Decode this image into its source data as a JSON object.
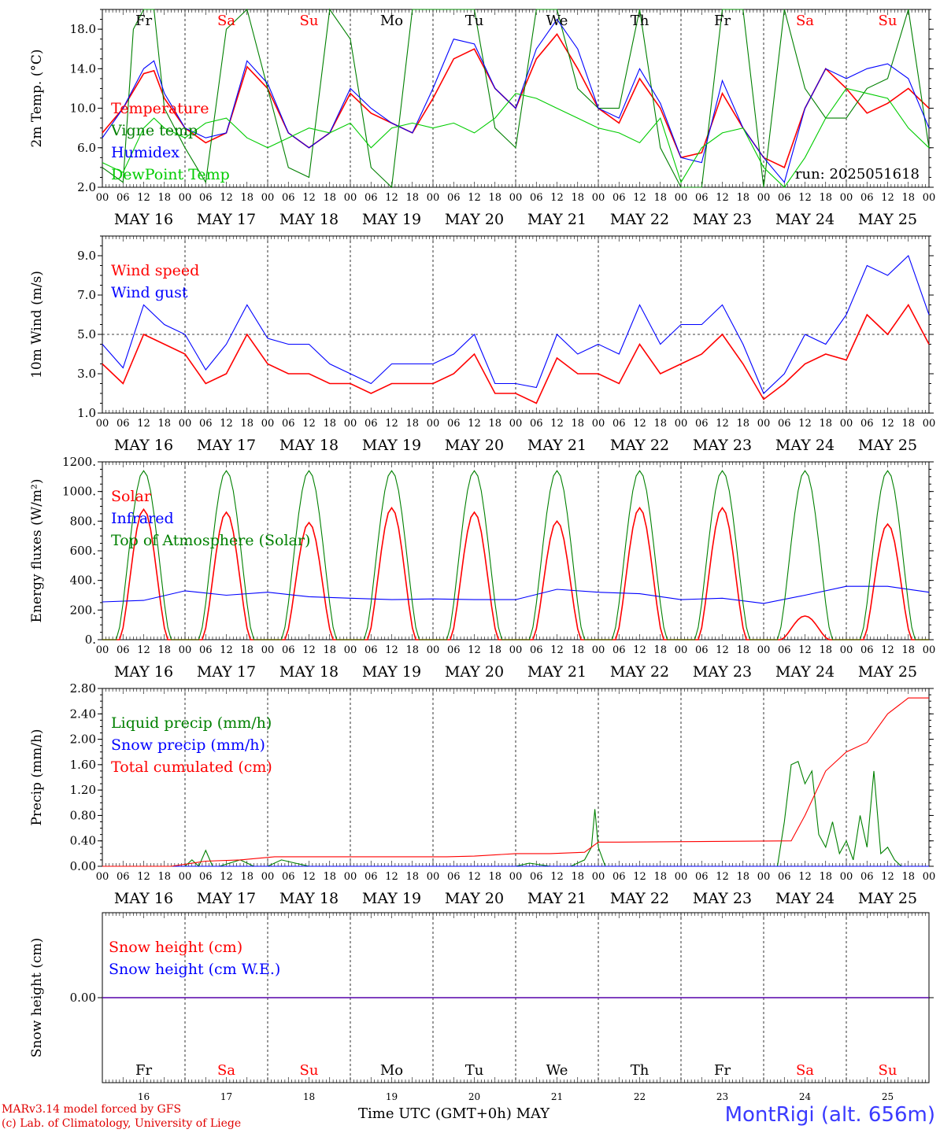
{
  "colors": {
    "red": "#ff0000",
    "green": "#008000",
    "blue": "#0000ff",
    "lightgreen": "#00cc00",
    "axis": "#000000",
    "footer_red": "#e00000",
    "station_blue": "#3a3aff"
  },
  "days": {
    "weekday_labels": [
      "Fr",
      "Sa",
      "Su",
      "Mo",
      "Tu",
      "We",
      "Th",
      "Fr",
      "Sa",
      "Su"
    ],
    "weekday_colors": [
      "#000000",
      "#ff0000",
      "#ff0000",
      "#000000",
      "#000000",
      "#000000",
      "#000000",
      "#000000",
      "#ff0000",
      "#ff0000"
    ],
    "date_labels": [
      "MAY 16",
      "MAY 17",
      "MAY 18",
      "MAY 19",
      "MAY 20",
      "MAY 21",
      "MAY 22",
      "MAY 23",
      "MAY 24",
      "MAY 25"
    ],
    "day_numbers": [
      "16",
      "17",
      "18",
      "19",
      "20",
      "21",
      "22",
      "23",
      "24",
      "25"
    ],
    "hour_labels": [
      "00",
      "06",
      "12",
      "18"
    ],
    "final_hour_label": "00"
  },
  "run_label": "run: 2025051618",
  "footer": {
    "model": "MARv3.14 model forced by GFS",
    "lab": "(c) Lab. of Climatology, University of Liege",
    "axis_title": "Time UTC (GMT+0h) MAY",
    "station": "MontRigi (alt. 656m)"
  },
  "chart_data": [
    {
      "id": "temp",
      "type": "line",
      "ylabel": "2m Temp. (°C)",
      "ylim": [
        2,
        20
      ],
      "yticks": [
        "2.0",
        "6.0",
        "10.0",
        "14.0",
        "18.0"
      ],
      "ytick_values": [
        2,
        6,
        10,
        14,
        18
      ],
      "x_unit": "hours since MAY 16 00 UTC",
      "xlim": [
        0,
        240
      ],
      "grid": "vertical dashed at 00 UTC",
      "legend": "top-left",
      "series": [
        {
          "name": "Temperature",
          "color": "#ff0000",
          "x": [
            0,
            6,
            12,
            15,
            18,
            24,
            30,
            36,
            42,
            48,
            54,
            60,
            66,
            72,
            78,
            84,
            90,
            96,
            102,
            108,
            114,
            120,
            126,
            132,
            138,
            144,
            150,
            156,
            162,
            168,
            174,
            180,
            186,
            192,
            198,
            204,
            210,
            216,
            222,
            228,
            234,
            240
          ],
          "y": [
            7.5,
            10,
            13.5,
            13.8,
            11,
            8,
            6.5,
            7.5,
            14.2,
            12,
            7.5,
            6,
            7.5,
            11.5,
            9.5,
            8.5,
            7.5,
            11,
            15,
            16,
            12,
            10,
            15,
            17.5,
            14,
            10,
            8.5,
            13,
            10,
            5,
            5.5,
            11.5,
            8,
            5,
            4,
            10,
            14,
            12,
            9.5,
            10.5,
            12,
            10
          ]
        },
        {
          "name": "Vigne temp",
          "color": "#008000",
          "x": [
            0,
            6,
            9,
            12,
            15,
            18,
            24,
            30,
            36,
            42,
            48,
            54,
            60,
            66,
            72,
            78,
            84,
            90,
            96,
            102,
            108,
            114,
            120,
            126,
            132,
            138,
            144,
            150,
            156,
            162,
            168,
            174,
            180,
            186,
            192,
            198,
            204,
            210,
            216,
            222,
            228,
            234,
            240
          ],
          "y": [
            4,
            2.5,
            18,
            20,
            20,
            10,
            6,
            2.5,
            18,
            20,
            12,
            4,
            3,
            20,
            17,
            4,
            2,
            20,
            20,
            20,
            20,
            8,
            6,
            20,
            20,
            12,
            10,
            10,
            20,
            6,
            2,
            2,
            20,
            20,
            2,
            20,
            12,
            9,
            9,
            12,
            13,
            20,
            6
          ]
        },
        {
          "name": "Humidex",
          "color": "#0000ff",
          "x": [
            0,
            6,
            12,
            15,
            18,
            24,
            30,
            36,
            42,
            48,
            54,
            60,
            66,
            72,
            78,
            84,
            90,
            96,
            102,
            108,
            114,
            120,
            126,
            132,
            138,
            144,
            150,
            156,
            162,
            168,
            174,
            180,
            186,
            192,
            198,
            204,
            210,
            216,
            222,
            228,
            234,
            240
          ],
          "y": [
            7,
            10,
            14,
            14.8,
            11.5,
            8,
            7,
            7.5,
            14.8,
            12.5,
            7.5,
            6,
            7.5,
            12,
            10,
            8.5,
            7.5,
            12,
            17,
            16.5,
            12,
            10,
            16,
            19,
            16,
            10,
            9,
            14,
            10.5,
            5,
            4.5,
            12.8,
            8,
            5,
            2.5,
            10,
            14,
            13,
            14,
            14.5,
            13,
            8
          ]
        },
        {
          "name": "DewPoint Temp",
          "color": "#00cc00",
          "x": [
            0,
            6,
            12,
            15,
            18,
            24,
            30,
            36,
            42,
            48,
            54,
            60,
            66,
            72,
            78,
            84,
            90,
            96,
            102,
            108,
            114,
            120,
            126,
            132,
            138,
            144,
            150,
            156,
            162,
            168,
            174,
            180,
            186,
            192,
            198,
            204,
            210,
            216,
            222,
            228,
            234,
            240
          ],
          "y": [
            4.5,
            3.5,
            8,
            9,
            8,
            7,
            8.5,
            9,
            7,
            6,
            7,
            8,
            7.5,
            8.5,
            6,
            8,
            8.5,
            8,
            8.5,
            7.5,
            9,
            11.5,
            11,
            10,
            9,
            8,
            7.5,
            6.5,
            9,
            2.5,
            6,
            7.5,
            8,
            4,
            2,
            5,
            9,
            12,
            11.5,
            11,
            8,
            6
          ]
        }
      ]
    },
    {
      "id": "wind",
      "type": "line",
      "ylabel": "10m Wind (m/s)",
      "ylim": [
        1,
        10
      ],
      "yticks": [
        "1.0",
        "3.0",
        "5.0",
        "7.0",
        "9.0"
      ],
      "ytick_values": [
        1,
        3,
        5,
        7,
        9
      ],
      "x_unit": "hours since MAY 16 00 UTC",
      "xlim": [
        0,
        240
      ],
      "reference_line": 5,
      "legend": "top-left",
      "series": [
        {
          "name": "Wind speed",
          "color": "#ff0000",
          "x": [
            0,
            6,
            12,
            18,
            24,
            30,
            36,
            42,
            48,
            54,
            60,
            66,
            72,
            78,
            84,
            90,
            96,
            102,
            108,
            114,
            120,
            126,
            132,
            138,
            144,
            150,
            156,
            162,
            168,
            174,
            180,
            186,
            192,
            198,
            204,
            210,
            216,
            222,
            228,
            234,
            240
          ],
          "y": [
            3.5,
            2.5,
            5,
            4.5,
            4,
            2.5,
            3,
            5,
            3.5,
            3,
            3,
            2.5,
            2.5,
            2,
            2.5,
            2.5,
            2.5,
            3,
            4,
            2,
            2,
            1.5,
            3.8,
            3,
            3,
            2.5,
            4.5,
            3,
            3.5,
            4,
            5,
            3.5,
            1.7,
            2.5,
            3.5,
            4,
            3.7,
            6,
            5,
            6.5,
            4.5
          ]
        },
        {
          "name": "Wind gust",
          "color": "#0000ff",
          "x": [
            0,
            6,
            12,
            18,
            24,
            30,
            36,
            42,
            48,
            54,
            60,
            66,
            72,
            78,
            84,
            90,
            96,
            102,
            108,
            114,
            120,
            126,
            132,
            138,
            144,
            150,
            156,
            162,
            168,
            174,
            180,
            186,
            192,
            198,
            204,
            210,
            216,
            222,
            228,
            234,
            240
          ],
          "y": [
            4.5,
            3.3,
            6.5,
            5.5,
            5,
            3.2,
            4.5,
            6.5,
            4.8,
            4.5,
            4.5,
            3.5,
            3,
            2.5,
            3.5,
            3.5,
            3.5,
            4,
            5,
            2.5,
            2.5,
            2.3,
            5,
            4,
            4.5,
            4,
            6.5,
            4.5,
            5.5,
            5.5,
            6.5,
            4.5,
            2,
            3,
            5,
            4.5,
            6,
            8.5,
            8,
            9,
            6
          ]
        }
      ]
    },
    {
      "id": "energy",
      "type": "line",
      "ylabel": "Energy fluxes (W/m²)",
      "ylim": [
        0,
        1200
      ],
      "yticks": [
        "0.",
        "200.",
        "400.",
        "600.",
        "800.",
        "1000.",
        "1200."
      ],
      "ytick_values": [
        0,
        200,
        400,
        600,
        800,
        1000,
        1200
      ],
      "x_unit": "hours since MAY 16 00 UTC",
      "xlim": [
        0,
        240
      ],
      "legend": "top-left",
      "solar_peaks": [
        880,
        860,
        790,
        890,
        860,
        800,
        890,
        890,
        160,
        780
      ],
      "toa_peak": 1140,
      "infrared_range": [
        250,
        370
      ],
      "series": [
        {
          "name": "Solar",
          "color": "#ff0000"
        },
        {
          "name": "Infrared",
          "color": "#0000ff",
          "x": [
            0,
            12,
            24,
            36,
            48,
            60,
            72,
            84,
            96,
            108,
            120,
            132,
            144,
            156,
            168,
            180,
            192,
            204,
            216,
            228,
            240
          ],
          "y": [
            255,
            265,
            330,
            300,
            320,
            290,
            280,
            270,
            275,
            270,
            270,
            340,
            320,
            310,
            270,
            280,
            245,
            300,
            360,
            360,
            320
          ]
        },
        {
          "name": "Top of Atmosphere (Solar)",
          "color": "#008000"
        }
      ]
    },
    {
      "id": "precip",
      "type": "line",
      "ylabel": "Precip (mm/h)",
      "ylim": [
        0,
        2.8
      ],
      "yticks": [
        "0.00",
        "0.40",
        "0.80",
        "1.20",
        "1.60",
        "2.00",
        "2.40",
        "2.80"
      ],
      "ytick_values": [
        0,
        0.4,
        0.8,
        1.2,
        1.6,
        2.0,
        2.4,
        2.8
      ],
      "x_unit": "hours since MAY 16 00 UTC",
      "xlim": [
        0,
        240
      ],
      "legend": "top-left",
      "series": [
        {
          "name": "Liquid precip (mm/h)",
          "color": "#008000",
          "x": [
            0,
            20,
            24,
            26,
            28,
            30,
            32,
            34,
            40,
            44,
            48,
            52,
            56,
            60,
            120,
            124,
            130,
            136,
            140,
            142,
            143,
            144,
            146,
            192,
            196,
            198,
            200,
            202,
            204,
            206,
            208,
            210,
            212,
            214,
            216,
            218,
            220,
            222,
            224,
            226,
            228,
            230,
            232,
            234,
            240
          ],
          "y": [
            0,
            0,
            0,
            0.1,
            0,
            0.25,
            0,
            0,
            0.1,
            0,
            0,
            0.1,
            0.05,
            0,
            0,
            0.05,
            0,
            0,
            0.1,
            0.3,
            0.9,
            0.3,
            0,
            0,
            0,
            0.7,
            1.6,
            1.65,
            1.3,
            1.5,
            0.5,
            0.3,
            0.7,
            0.2,
            0.4,
            0.1,
            0.8,
            0.3,
            1.5,
            0.2,
            0.3,
            0.1,
            0,
            0,
            0
          ]
        },
        {
          "name": "Snow precip (mm/h)",
          "color": "#0000ff",
          "x": [
            0,
            240
          ],
          "y": [
            0,
            0
          ]
        },
        {
          "name": "Total cumulated (cm)",
          "color": "#ff0000",
          "x": [
            0,
            20,
            30,
            40,
            50,
            100,
            108,
            120,
            130,
            140,
            144,
            150,
            200,
            204,
            210,
            216,
            222,
            228,
            234,
            240
          ],
          "y": [
            0,
            0,
            0.08,
            0.1,
            0.15,
            0.15,
            0.16,
            0.2,
            0.2,
            0.22,
            0.38,
            0.38,
            0.4,
            0.8,
            1.5,
            1.8,
            1.95,
            2.4,
            2.65,
            2.65
          ]
        }
      ]
    },
    {
      "id": "snow",
      "type": "line",
      "ylabel": "Snow height (cm)",
      "yticks": [
        "0.00"
      ],
      "ytick_values": [
        0
      ],
      "x_unit": "hours since MAY 16 00 UTC",
      "xlim": [
        0,
        240
      ],
      "legend": "top-left",
      "series": [
        {
          "name": "Snow height (cm)",
          "color": "#ff0000",
          "x": [
            0,
            240
          ],
          "y": [
            0,
            0
          ]
        },
        {
          "name": "Snow height (cm W.E.)",
          "color": "#0000ff",
          "x": [
            0,
            240
          ],
          "y": [
            0,
            0
          ]
        }
      ]
    }
  ]
}
